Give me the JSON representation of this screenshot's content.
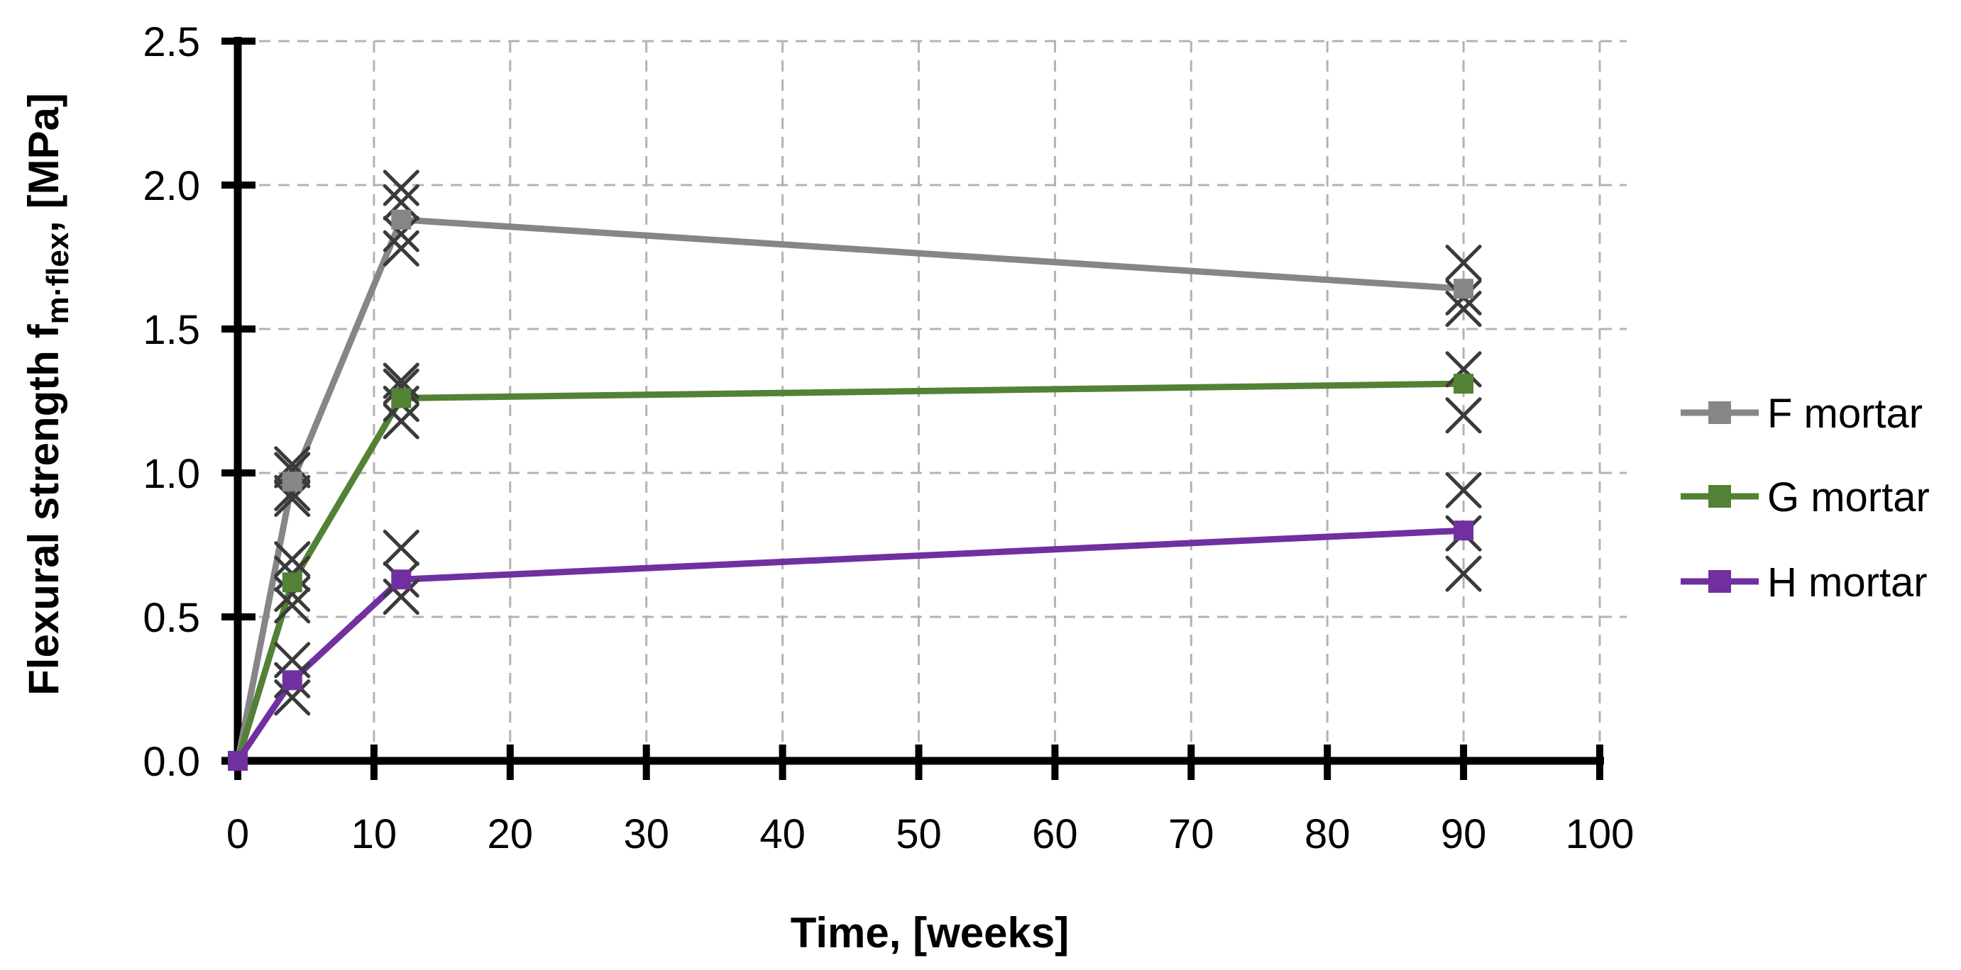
{
  "figure": {
    "type_note": "scientific line chart with mean-value square markers and individual-result x scatter points"
  },
  "chart_data": {
    "type": "line",
    "title": "",
    "xlabel": "Time, [weeks]",
    "ylabel": {
      "prefix": "Flexural strength f",
      "subscript": "m·flex",
      "suffix": ", [MPa]"
    },
    "xlim": [
      0,
      100
    ],
    "ylim": [
      0.0,
      2.5
    ],
    "xticks": [
      "0",
      "10",
      "20",
      "30",
      "40",
      "50",
      "60",
      "70",
      "80",
      "90",
      "100"
    ],
    "yticks": [
      "0.0",
      "0.5",
      "1.0",
      "1.5",
      "2.0",
      "2.5"
    ],
    "grid": "dashed major gridlines, both axes",
    "legend_position": "right",
    "x": [
      0,
      4,
      12,
      90
    ],
    "series": [
      {
        "name": "F mortar",
        "color": "#868686",
        "values": [
          0.0,
          0.97,
          1.88,
          1.64
        ],
        "scatter": [
          [
            4,
            1.03
          ],
          [
            4,
            1.01
          ],
          [
            4,
            0.93
          ],
          [
            4,
            0.91
          ],
          [
            12,
            1.99
          ],
          [
            12,
            1.94
          ],
          [
            12,
            1.83
          ],
          [
            12,
            1.78
          ],
          [
            90,
            1.73
          ],
          [
            90,
            1.61
          ],
          [
            90,
            1.57
          ]
        ]
      },
      {
        "name": "G mortar",
        "color": "#538135",
        "values": [
          0.0,
          0.62,
          1.26,
          1.31
        ],
        "scatter": [
          [
            4,
            0.7
          ],
          [
            4,
            0.65
          ],
          [
            4,
            0.58
          ],
          [
            4,
            0.54
          ],
          [
            12,
            1.32
          ],
          [
            12,
            1.3
          ],
          [
            12,
            1.24
          ],
          [
            12,
            1.18
          ],
          [
            90,
            1.36
          ],
          [
            90,
            1.2
          ]
        ]
      },
      {
        "name": "H mortar",
        "color": "#7030a0",
        "values": [
          0.0,
          0.28,
          0.63,
          0.8
        ],
        "scatter": [
          [
            4,
            0.35
          ],
          [
            4,
            0.28
          ],
          [
            4,
            0.22
          ],
          [
            12,
            0.74
          ],
          [
            12,
            0.63
          ],
          [
            12,
            0.57
          ],
          [
            90,
            0.94
          ],
          [
            90,
            0.79
          ],
          [
            90,
            0.65
          ]
        ]
      }
    ],
    "scatter_marker": "x",
    "scatter_color": "#3a3a3a",
    "marker": "square"
  }
}
